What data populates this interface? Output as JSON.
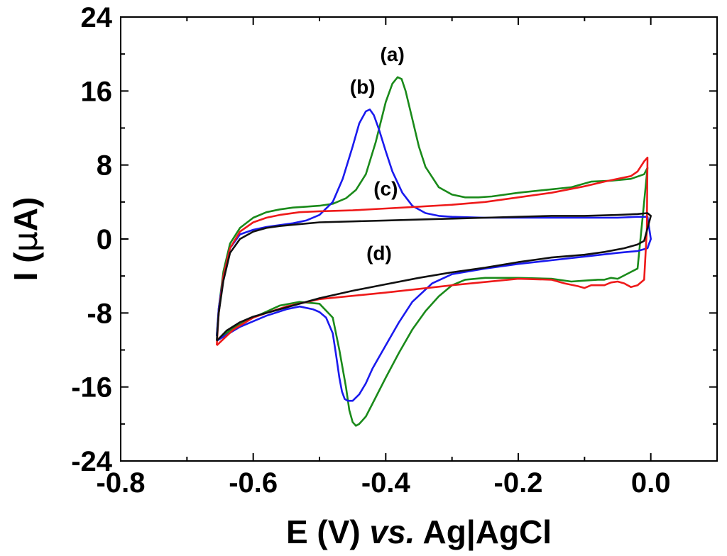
{
  "chart_data": {
    "type": "line",
    "title": "",
    "xlabel": {
      "main": "E (V) ",
      "italic": "vs.",
      "rest": " Ag|AgCl"
    },
    "ylabel": {
      "pre": "I (",
      "mu": "μ",
      "post": "A)"
    },
    "xlim": [
      -0.8,
      0.1
    ],
    "ylim": [
      -24,
      24
    ],
    "xticks": [
      -0.8,
      -0.6,
      -0.4,
      -0.2,
      0.0
    ],
    "xtick_labels": [
      "-0.8",
      "-0.6",
      "-0.4",
      "-0.2",
      "0.0"
    ],
    "yticks": [
      24,
      16,
      8,
      0,
      -8,
      -16,
      -24
    ],
    "ytick_labels": [
      "24",
      "16",
      "8",
      "0",
      "-8",
      "-16",
      "-24"
    ],
    "annotations": [
      {
        "text": "(a)",
        "x": -0.39,
        "y": 20.0
      },
      {
        "text": "(b)",
        "x": -0.435,
        "y": 16.5
      },
      {
        "text": "(c)",
        "x": -0.4,
        "y": 5.5
      },
      {
        "text": "(d)",
        "x": -0.41,
        "y": -1.5
      }
    ],
    "series": [
      {
        "name": "(a)",
        "color": "#1a8a1a",
        "x": [
          -0.655,
          -0.652,
          -0.645,
          -0.635,
          -0.62,
          -0.6,
          -0.58,
          -0.56,
          -0.54,
          -0.52,
          -0.5,
          -0.48,
          -0.46,
          -0.445,
          -0.43,
          -0.415,
          -0.4,
          -0.39,
          -0.382,
          -0.376,
          -0.37,
          -0.36,
          -0.35,
          -0.34,
          -0.32,
          -0.3,
          -0.28,
          -0.26,
          -0.24,
          -0.2,
          -0.16,
          -0.12,
          -0.09,
          -0.06,
          -0.03,
          -0.01,
          -0.005,
          -0.01,
          -0.02,
          -0.05,
          -0.06,
          -0.07,
          -0.08,
          -0.1,
          -0.12,
          -0.15,
          -0.2,
          -0.25,
          -0.28,
          -0.3,
          -0.32,
          -0.34,
          -0.36,
          -0.38,
          -0.4,
          -0.42,
          -0.43,
          -0.44,
          -0.445,
          -0.45,
          -0.455,
          -0.46,
          -0.47,
          -0.48,
          -0.5,
          -0.53,
          -0.56,
          -0.6,
          -0.63,
          -0.655
        ],
        "y": [
          -10.5,
          -7.5,
          -3.5,
          -0.5,
          1.2,
          2.3,
          2.9,
          3.2,
          3.4,
          3.5,
          3.6,
          3.8,
          4.4,
          5.3,
          7.0,
          10.5,
          14.8,
          16.8,
          17.5,
          17.3,
          16.0,
          13.0,
          10.0,
          7.8,
          5.6,
          4.8,
          4.5,
          4.5,
          4.6,
          5.0,
          5.3,
          5.6,
          6.2,
          6.3,
          6.5,
          7.0,
          7.7,
          4.0,
          -3.2,
          -4.3,
          -4.2,
          -4.4,
          -4.4,
          -4.5,
          -4.6,
          -4.3,
          -4.2,
          -4.2,
          -4.4,
          -5.0,
          -6.2,
          -7.8,
          -9.8,
          -12.3,
          -15.0,
          -17.8,
          -19.2,
          -20.0,
          -20.2,
          -19.8,
          -18.5,
          -16.0,
          -12.0,
          -8.5,
          -7.0,
          -6.8,
          -7.2,
          -8.5,
          -9.6,
          -11.0
        ]
      },
      {
        "name": "(b)",
        "color": "#1a1aee",
        "x": [
          -0.655,
          -0.652,
          -0.645,
          -0.635,
          -0.62,
          -0.6,
          -0.58,
          -0.56,
          -0.54,
          -0.52,
          -0.5,
          -0.48,
          -0.465,
          -0.45,
          -0.44,
          -0.43,
          -0.424,
          -0.418,
          -0.41,
          -0.4,
          -0.39,
          -0.375,
          -0.36,
          -0.34,
          -0.32,
          -0.3,
          -0.25,
          -0.2,
          -0.15,
          -0.1,
          -0.05,
          -0.02,
          -0.005,
          0.0,
          -0.005,
          -0.02,
          -0.05,
          -0.1,
          -0.15,
          -0.2,
          -0.25,
          -0.3,
          -0.33,
          -0.36,
          -0.38,
          -0.4,
          -0.42,
          -0.43,
          -0.44,
          -0.45,
          -0.457,
          -0.462,
          -0.466,
          -0.47,
          -0.475,
          -0.48,
          -0.49,
          -0.5,
          -0.51,
          -0.53,
          -0.55,
          -0.58,
          -0.62,
          -0.655
        ],
        "y": [
          -10.5,
          -7.5,
          -4.0,
          -1.0,
          0.5,
          1.0,
          1.3,
          1.5,
          1.7,
          2.0,
          2.6,
          4.0,
          6.5,
          10.0,
          12.5,
          13.8,
          14.0,
          13.4,
          11.8,
          9.5,
          7.3,
          5.0,
          3.6,
          2.8,
          2.5,
          2.4,
          2.3,
          2.3,
          2.3,
          2.3,
          2.3,
          2.4,
          2.4,
          0.0,
          -1.0,
          -1.3,
          -1.5,
          -1.9,
          -2.3,
          -2.7,
          -3.2,
          -3.8,
          -4.8,
          -6.8,
          -9.0,
          -11.5,
          -14.0,
          -15.6,
          -16.8,
          -17.5,
          -17.5,
          -17.3,
          -16.5,
          -15.0,
          -12.5,
          -10.2,
          -8.5,
          -7.9,
          -7.6,
          -7.3,
          -7.6,
          -8.3,
          -9.5,
          -11.0
        ]
      },
      {
        "name": "(c)",
        "color": "#ee1a1a",
        "x": [
          -0.655,
          -0.652,
          -0.645,
          -0.635,
          -0.62,
          -0.6,
          -0.58,
          -0.56,
          -0.53,
          -0.5,
          -0.45,
          -0.4,
          -0.35,
          -0.3,
          -0.25,
          -0.2,
          -0.15,
          -0.1,
          -0.07,
          -0.05,
          -0.03,
          -0.02,
          -0.01,
          -0.005,
          -0.006,
          -0.01,
          -0.02,
          -0.03,
          -0.04,
          -0.05,
          -0.06,
          -0.07,
          -0.09,
          -0.1,
          -0.11,
          -0.13,
          -0.15,
          -0.2,
          -0.3,
          -0.4,
          -0.5,
          -0.55,
          -0.58,
          -0.6,
          -0.63,
          -0.655
        ],
        "y": [
          -11.5,
          -8.0,
          -4.0,
          -1.0,
          0.8,
          1.8,
          2.3,
          2.6,
          2.9,
          3.0,
          3.1,
          3.3,
          3.5,
          3.7,
          4.0,
          4.5,
          5.0,
          5.7,
          6.2,
          6.5,
          6.8,
          7.3,
          8.4,
          8.8,
          1.0,
          -4.4,
          -5.0,
          -5.2,
          -4.8,
          -4.6,
          -4.7,
          -5.0,
          -5.0,
          -5.3,
          -5.1,
          -4.8,
          -4.4,
          -4.3,
          -5.0,
          -5.8,
          -6.5,
          -7.3,
          -8.0,
          -8.5,
          -9.8,
          -11.5
        ]
      },
      {
        "name": "(d)",
        "color": "#111111",
        "x": [
          -0.655,
          -0.652,
          -0.645,
          -0.635,
          -0.62,
          -0.6,
          -0.58,
          -0.56,
          -0.53,
          -0.5,
          -0.45,
          -0.4,
          -0.35,
          -0.3,
          -0.25,
          -0.2,
          -0.15,
          -0.1,
          -0.05,
          -0.02,
          -0.005,
          0.0,
          -0.01,
          -0.02,
          -0.04,
          -0.07,
          -0.1,
          -0.15,
          -0.2,
          -0.25,
          -0.3,
          -0.35,
          -0.4,
          -0.45,
          -0.5,
          -0.53,
          -0.56,
          -0.58,
          -0.6,
          -0.62,
          -0.64,
          -0.655
        ],
        "y": [
          -11.0,
          -8.0,
          -4.5,
          -1.5,
          0.0,
          0.8,
          1.2,
          1.4,
          1.6,
          1.8,
          1.9,
          2.0,
          2.1,
          2.2,
          2.3,
          2.4,
          2.5,
          2.5,
          2.6,
          2.7,
          2.8,
          2.5,
          -0.2,
          -0.6,
          -1.0,
          -1.4,
          -1.7,
          -2.0,
          -2.5,
          -3.1,
          -3.6,
          -4.2,
          -4.9,
          -5.6,
          -6.4,
          -7.0,
          -7.6,
          -8.0,
          -8.4,
          -9.0,
          -9.9,
          -11.0
        ]
      }
    ]
  }
}
